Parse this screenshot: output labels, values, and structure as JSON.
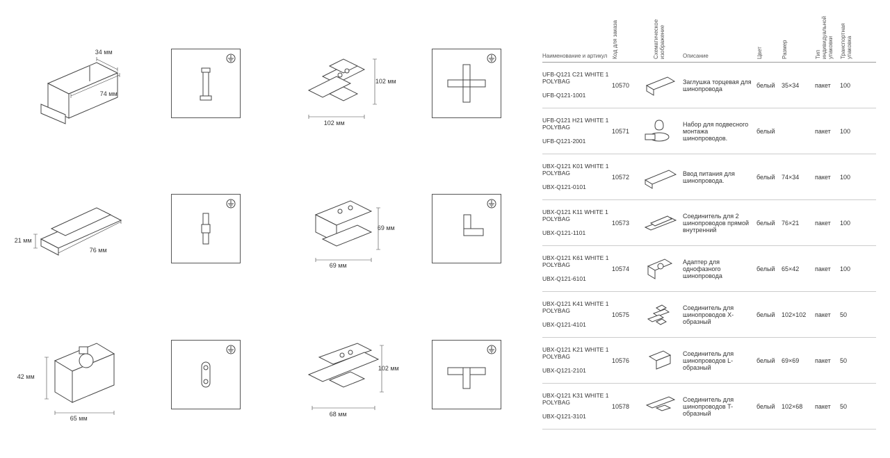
{
  "diagrams": {
    "d1": {
      "dim_w": "34 мм",
      "dim_h": "74 мм"
    },
    "d2": {
      "dim_w": "102 мм",
      "dim_h": "102 мм"
    },
    "d3": {
      "dim_w": "76 мм",
      "dim_h": "21 мм"
    },
    "d4": {
      "dim_w": "69 мм",
      "dim_h": "69 мм"
    },
    "d5": {
      "dim_w": "65 мм",
      "dim_h": "42 мм"
    },
    "d6": {
      "dim_w": "68 мм",
      "dim_h": "102 мм"
    }
  },
  "headers": {
    "name": "Наименование и артикул",
    "code": "Код для заказа",
    "schem": "Схематическое изображение",
    "desc": "Описание",
    "color": "Цвет",
    "size": "Размер",
    "pack": "Тип индивидуальной упаковки",
    "qty": "Транспортная упаковка"
  },
  "rows": [
    {
      "name1": "UFB-Q121 C21 WHITE 1 POLYBAG",
      "name2": "UFB-Q121-1001",
      "code": "10570",
      "desc": "Заглушка торцевая для шинопровода",
      "color": "белый",
      "size": "35×34",
      "pack": "пакет",
      "qty": "100",
      "icon": "endcap"
    },
    {
      "name1": "UFB-Q121 H21 WHITE 1 POLYBAG",
      "name2": "UFB-Q121-2001",
      "code": "10571",
      "desc": "Набор для подвесного монтажа шинопроводов.",
      "color": "белый",
      "size": "",
      "pack": "пакет",
      "qty": "100",
      "icon": "kit"
    },
    {
      "name1": "UBX-Q121 K01 WHITE 1 POLYBAG",
      "name2": "UBX-Q121-0101",
      "code": "10572",
      "desc": "Ввод питания для шинопровода.",
      "color": "белый",
      "size": "74×34",
      "pack": "пакет",
      "qty": "100",
      "icon": "power"
    },
    {
      "name1": "UBX-Q121 K11 WHITE 1 POLYBAG",
      "name2": "UBX-Q121-1101",
      "code": "10573",
      "desc": "Соединитель для 2 шинопроводов прямой внутренний",
      "color": "белый",
      "size": "76×21",
      "pack": "пакет",
      "qty": "100",
      "icon": "straight"
    },
    {
      "name1": "UBX-Q121 K61 WHITE 1 POLYBAG",
      "name2": "UBX-Q121-6101",
      "code": "10574",
      "desc": "Адаптер для однофазного шинопровода",
      "color": "белый",
      "size": "65×42",
      "pack": "пакет",
      "qty": "100",
      "icon": "adapter"
    },
    {
      "name1": "UBX-Q121 K41 WHITE 1 POLYBAG",
      "name2": "UBX-Q121-4101",
      "code": "10575",
      "desc": "Соединитель для шинопроводов X-образный",
      "color": "белый",
      "size": "102×102",
      "pack": "пакет",
      "qty": "50",
      "icon": "xconn"
    },
    {
      "name1": "UBX-Q121 K21 WHITE 1 POLYBAG",
      "name2": "UBX-Q121-2101",
      "code": "10576",
      "desc": "Соединитель для шинопроводов L-образный",
      "color": "белый",
      "size": "69×69",
      "pack": "пакет",
      "qty": "50",
      "icon": "lconn"
    },
    {
      "name1": "UBX-Q121 K31 WHITE 1 POLYBAG",
      "name2": "UBX-Q121-3101",
      "code": "10578",
      "desc": "Соединитель для шинопроводов T-образный",
      "color": "белый",
      "size": "102×68",
      "pack": "пакет",
      "qty": "50",
      "icon": "tconn"
    }
  ],
  "style": {
    "stroke": "#444",
    "stroke_light": "#888",
    "fill": "#fff",
    "text": "#333",
    "border": "#ccc"
  }
}
